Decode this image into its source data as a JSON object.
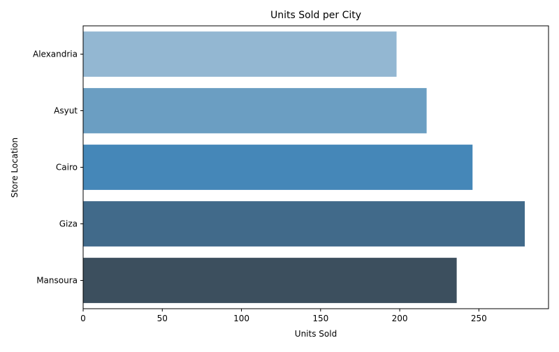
{
  "chart_data": {
    "type": "bar",
    "orientation": "horizontal",
    "title": "Units Sold per City",
    "xlabel": "Units Sold",
    "ylabel": "Store Location",
    "categories": [
      "Alexandria",
      "Asyut",
      "Cairo",
      "Giza",
      "Mansoura"
    ],
    "values": [
      198,
      217,
      246,
      279,
      236
    ],
    "colors": [
      "#93b7d2",
      "#6b9ec2",
      "#4587b8",
      "#416a8a",
      "#3c4f5e"
    ],
    "xlim": [
      0,
      294
    ],
    "x_ticks": [
      0,
      50,
      100,
      150,
      200,
      250
    ],
    "grid": false,
    "legend": "none"
  }
}
